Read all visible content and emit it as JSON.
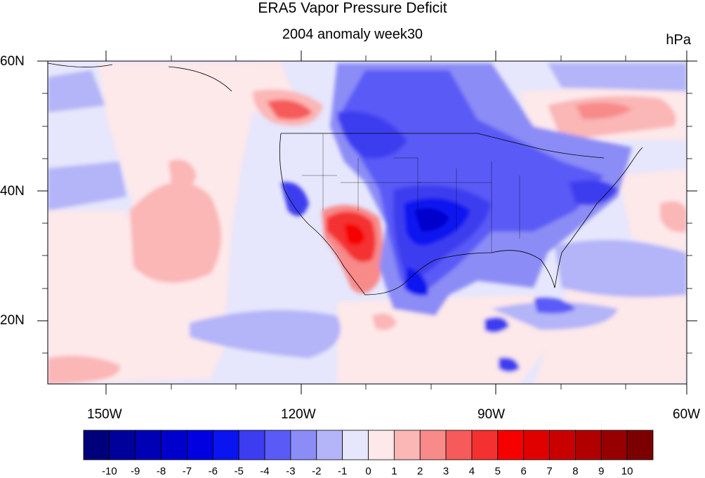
{
  "title": "ERA5 Vapor Pressure Deficit",
  "subtitle": "2004 anomaly week30",
  "units": "hPa",
  "lat_labels": [
    "60N",
    "40N",
    "20N"
  ],
  "lon_labels": [
    "150W",
    "120W",
    "90W",
    "60W"
  ],
  "colorbar": {
    "labels": [
      "-10",
      "-9",
      "-8",
      "-7",
      "-6",
      "-5",
      "-4",
      "-3",
      "-2",
      "-1",
      "0",
      "1",
      "2",
      "3",
      "4",
      "5",
      "6",
      "7",
      "8",
      "9",
      "10"
    ],
    "colors": [
      "#00007a",
      "#00009a",
      "#0000b4",
      "#0000cc",
      "#0000e0",
      "#0a14f0",
      "#3c3cf0",
      "#5a5af6",
      "#8c8cf6",
      "#b4b4f8",
      "#e6e6fc",
      "#fde8ea",
      "#fbb6b6",
      "#f88a8a",
      "#f65a5a",
      "#f43030",
      "#f60000",
      "#e00000",
      "#c80000",
      "#b00000",
      "#960000",
      "#7c0000"
    ]
  },
  "colors": {
    "background_field": "#e6e6fc",
    "pale_red": "#fde8ea"
  }
}
